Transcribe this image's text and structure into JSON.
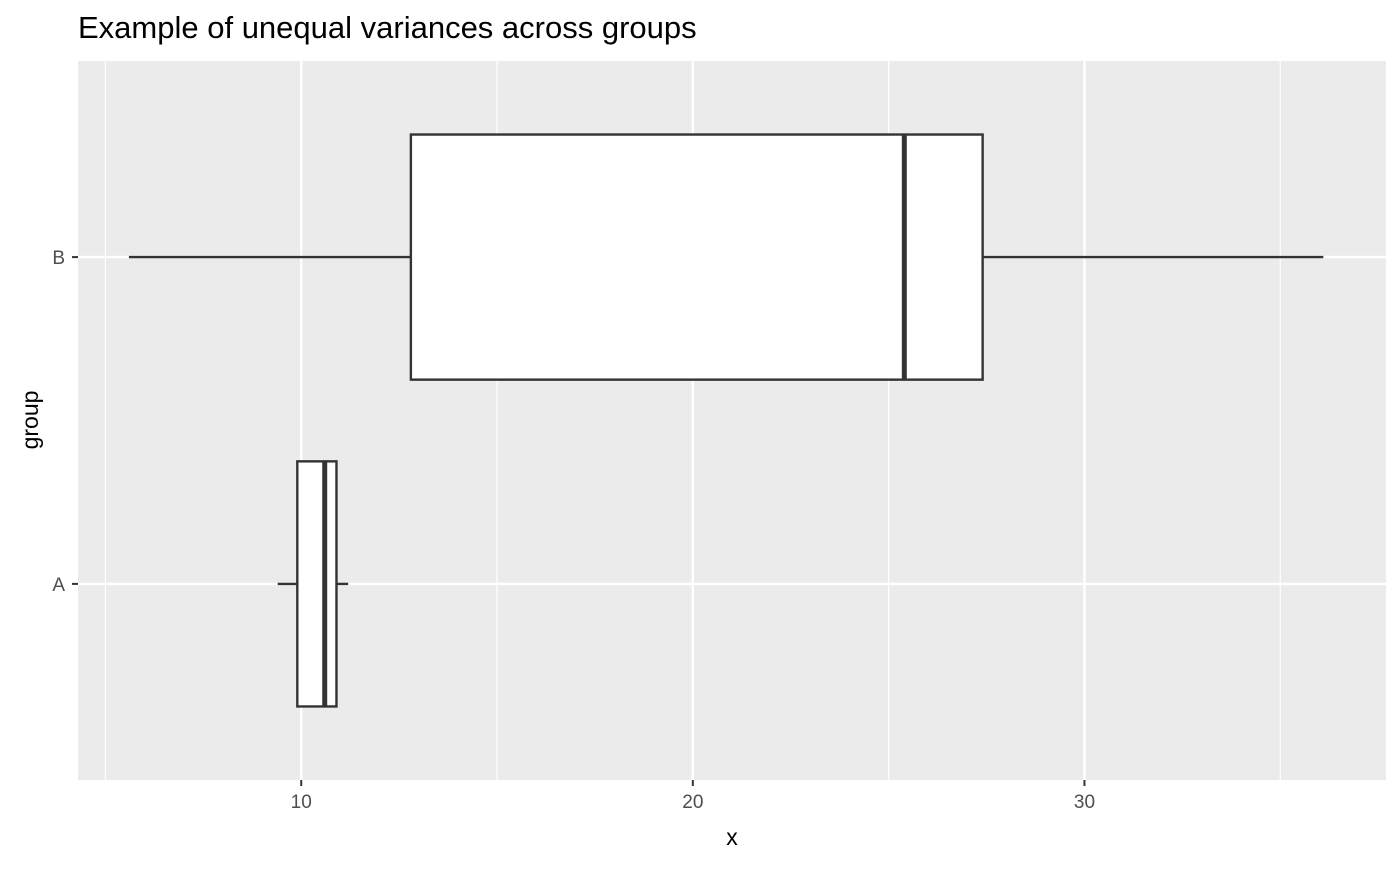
{
  "chart_data": {
    "type": "boxplot",
    "orientation": "horizontal",
    "title": "Example of unequal variances across groups",
    "xlabel": "x",
    "ylabel": "group",
    "xlim": [
      4.3,
      37.7
    ],
    "x_ticks": [
      10,
      20,
      30
    ],
    "x_tick_labels": [
      "10",
      "20",
      "30"
    ],
    "x_minor_ticks": [
      5,
      15,
      25,
      35
    ],
    "categories": [
      "A",
      "B"
    ],
    "boxes": [
      {
        "group": "A",
        "whisker_low": 9.4,
        "q1": 9.9,
        "median": 10.6,
        "q3": 10.9,
        "whisker_high": 11.2
      },
      {
        "group": "B",
        "whisker_low": 5.6,
        "q1": 12.8,
        "median": 25.4,
        "q3": 27.4,
        "whisker_high": 36.1
      }
    ],
    "grid": true,
    "legend": "none",
    "colors": {
      "panel_background": "#EBEBEB",
      "grid_line": "#FFFFFF",
      "box_fill": "#FFFFFF",
      "box_stroke": "#333333",
      "tick_label": "#4D4D4D",
      "axis_title": "#000000"
    }
  }
}
